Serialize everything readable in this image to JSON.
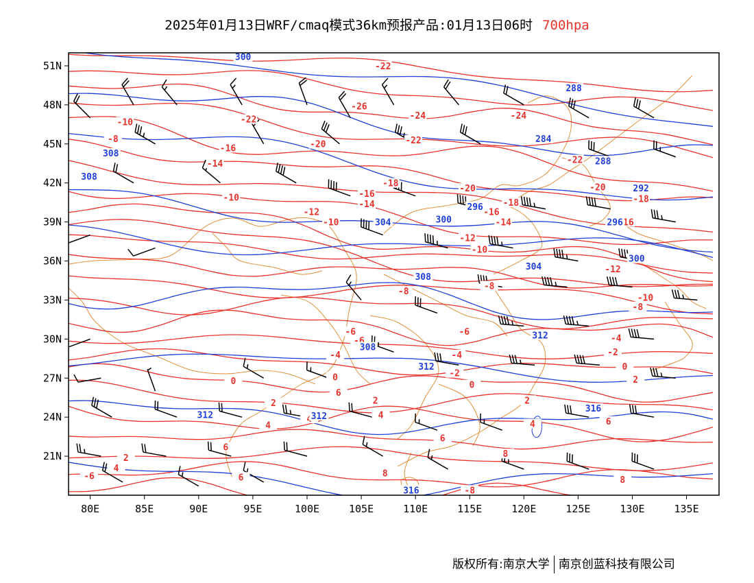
{
  "header": {
    "title": "2025年01月13日WRF/cmaq模式36km预报产品:01月13日06时",
    "level": "700hpa"
  },
  "footer": {
    "copyright": "版权所有:南京大学",
    "company": "南京创蓝科技有限公司"
  },
  "map": {
    "lon_range": [
      78,
      138
    ],
    "lat_range": [
      18,
      52
    ],
    "x_ticks": [
      {
        "lon": 80,
        "label": "80E"
      },
      {
        "lon": 85,
        "label": "85E"
      },
      {
        "lon": 90,
        "label": "90E"
      },
      {
        "lon": 95,
        "label": "95E"
      },
      {
        "lon": 100,
        "label": "100E"
      },
      {
        "lon": 105,
        "label": "105E"
      },
      {
        "lon": 110,
        "label": "110E"
      },
      {
        "lon": 115,
        "label": "115E"
      },
      {
        "lon": 120,
        "label": "120E"
      },
      {
        "lon": 125,
        "label": "125E"
      },
      {
        "lon": 130,
        "label": "130E"
      },
      {
        "lon": 135,
        "label": "135E"
      }
    ],
    "y_ticks": [
      {
        "lat": 21,
        "label": "21N"
      },
      {
        "lat": 24,
        "label": "24N"
      },
      {
        "lat": 27,
        "label": "27N"
      },
      {
        "lat": 30,
        "label": "30N"
      },
      {
        "lat": 33,
        "label": "33N"
      },
      {
        "lat": 36,
        "label": "36N"
      },
      {
        "lat": 39,
        "label": "39N"
      },
      {
        "lat": 42,
        "label": "42N"
      },
      {
        "lat": 45,
        "label": "45N"
      },
      {
        "lat": 48,
        "label": "48N"
      },
      {
        "lat": 51,
        "label": "51N"
      }
    ],
    "colors": {
      "temperature": "#e8322b",
      "geopotential": "#1f3fd8",
      "boundary": "#e0903a",
      "barb": "#000000"
    },
    "temperature_labels": [
      {
        "t": "-22",
        "lon": 107.0,
        "lat": 50.9
      },
      {
        "t": "-26",
        "lon": 104.8,
        "lat": 47.8
      },
      {
        "t": "-24",
        "lon": 110.2,
        "lat": 47.1
      },
      {
        "t": "-24",
        "lon": 119.5,
        "lat": 47.1
      },
      {
        "t": "-10",
        "lon": 83.2,
        "lat": 46.6
      },
      {
        "t": "-22",
        "lon": 94.6,
        "lat": 46.8
      },
      {
        "t": "-8",
        "lon": 82.1,
        "lat": 45.3
      },
      {
        "t": "-20",
        "lon": 101.0,
        "lat": 44.9
      },
      {
        "t": "-22",
        "lon": 109.8,
        "lat": 45.2
      },
      {
        "t": "-16",
        "lon": 92.7,
        "lat": 44.6
      },
      {
        "t": "-14",
        "lon": 91.5,
        "lat": 43.4
      },
      {
        "t": "-22",
        "lon": 124.7,
        "lat": 43.7
      },
      {
        "t": "-18",
        "lon": 107.7,
        "lat": 41.9
      },
      {
        "t": "-20",
        "lon": 114.8,
        "lat": 41.5
      },
      {
        "t": "-20",
        "lon": 126.8,
        "lat": 41.6
      },
      {
        "t": "-16",
        "lon": 105.5,
        "lat": 41.1
      },
      {
        "t": "-14",
        "lon": 105.5,
        "lat": 40.3
      },
      {
        "t": "-18",
        "lon": 118.8,
        "lat": 40.4
      },
      {
        "t": "-16",
        "lon": 117.0,
        "lat": 39.7
      },
      {
        "t": "-18",
        "lon": 130.8,
        "lat": 40.7
      },
      {
        "t": "-10",
        "lon": 93.0,
        "lat": 40.8
      },
      {
        "t": "-12",
        "lon": 100.4,
        "lat": 39.7
      },
      {
        "t": "-10",
        "lon": 102.2,
        "lat": 38.9
      },
      {
        "t": "-14",
        "lon": 118.1,
        "lat": 38.9
      },
      {
        "t": "-16",
        "lon": 129.4,
        "lat": 38.9
      },
      {
        "t": "-12",
        "lon": 114.8,
        "lat": 37.7
      },
      {
        "t": "-10",
        "lon": 115.9,
        "lat": 36.8
      },
      {
        "t": "-12",
        "lon": 128.2,
        "lat": 35.3
      },
      {
        "t": "-8",
        "lon": 108.9,
        "lat": 33.6
      },
      {
        "t": "-8",
        "lon": 116.8,
        "lat": 34.0
      },
      {
        "t": "-10",
        "lon": 131.2,
        "lat": 33.1
      },
      {
        "t": "-8",
        "lon": 130.5,
        "lat": 32.4
      },
      {
        "t": "-6",
        "lon": 104.0,
        "lat": 30.5
      },
      {
        "t": "-6",
        "lon": 114.5,
        "lat": 30.5
      },
      {
        "t": "-4",
        "lon": 128.5,
        "lat": 30.0
      },
      {
        "t": "-4",
        "lon": 102.6,
        "lat": 28.7
      },
      {
        "t": "-4",
        "lon": 113.8,
        "lat": 28.7
      },
      {
        "t": "-2",
        "lon": 128.2,
        "lat": 28.9
      },
      {
        "t": "0",
        "lon": 93.2,
        "lat": 26.7
      },
      {
        "t": "0",
        "lon": 102.6,
        "lat": 27.0
      },
      {
        "t": "-2",
        "lon": 113.6,
        "lat": 27.3
      },
      {
        "t": "0",
        "lon": 129.3,
        "lat": 27.8
      },
      {
        "t": "0",
        "lon": 115.2,
        "lat": 26.4
      },
      {
        "t": "2",
        "lon": 130.3,
        "lat": 26.8
      },
      {
        "t": "2",
        "lon": 106.3,
        "lat": 25.2
      },
      {
        "t": "2",
        "lon": 96.9,
        "lat": 25.0
      },
      {
        "t": "2",
        "lon": 120.3,
        "lat": 25.2
      },
      {
        "t": "4",
        "lon": 106.8,
        "lat": 24.1
      },
      {
        "t": "4",
        "lon": 100.2,
        "lat": 23.8
      },
      {
        "t": "4",
        "lon": 96.4,
        "lat": 23.3
      },
      {
        "t": "4",
        "lon": 120.8,
        "lat": 23.4
      },
      {
        "t": "6",
        "lon": 127.8,
        "lat": 23.6
      },
      {
        "t": "2",
        "lon": 83.3,
        "lat": 20.8
      },
      {
        "t": "4",
        "lon": 82.4,
        "lat": 20.0
      },
      {
        "t": "6",
        "lon": 92.5,
        "lat": 21.6
      },
      {
        "t": "6",
        "lon": 112.5,
        "lat": 22.3
      },
      {
        "t": "6",
        "lon": 93.9,
        "lat": 19.3
      },
      {
        "t": "8",
        "lon": 118.3,
        "lat": 21.1
      },
      {
        "t": "8",
        "lon": 107.2,
        "lat": 19.6
      },
      {
        "t": "-6",
        "lon": 79.9,
        "lat": 19.4
      },
      {
        "t": "-8",
        "lon": 115.0,
        "lat": 18.3
      },
      {
        "t": "8",
        "lon": 129.1,
        "lat": 19.1
      },
      {
        "t": "6",
        "lon": 102.9,
        "lat": 25.8
      },
      {
        "t": "-6",
        "lon": 104.8,
        "lat": 29.8
      }
    ],
    "height_labels": [
      {
        "h": "300",
        "lon": 94.1,
        "lat": 51.6
      },
      {
        "h": "288",
        "lon": 124.6,
        "lat": 49.2
      },
      {
        "h": "284",
        "lon": 121.8,
        "lat": 45.3
      },
      {
        "h": "288",
        "lon": 127.3,
        "lat": 43.6
      },
      {
        "h": "292",
        "lon": 130.8,
        "lat": 41.5
      },
      {
        "h": "296",
        "lon": 115.5,
        "lat": 40.1
      },
      {
        "h": "296",
        "lon": 128.4,
        "lat": 38.9
      },
      {
        "h": "300",
        "lon": 112.6,
        "lat": 39.1
      },
      {
        "h": "304",
        "lon": 107.0,
        "lat": 38.9
      },
      {
        "h": "304",
        "lon": 120.9,
        "lat": 35.5
      },
      {
        "h": "300",
        "lon": 130.4,
        "lat": 36.1
      },
      {
        "h": "308",
        "lon": 81.9,
        "lat": 44.2
      },
      {
        "h": "308",
        "lon": 79.9,
        "lat": 42.4
      },
      {
        "h": "308",
        "lon": 110.7,
        "lat": 34.7
      },
      {
        "h": "308",
        "lon": 105.6,
        "lat": 29.3
      },
      {
        "h": "312",
        "lon": 121.5,
        "lat": 30.2
      },
      {
        "h": "312",
        "lon": 111.0,
        "lat": 27.8
      },
      {
        "h": "312",
        "lon": 90.6,
        "lat": 24.1
      },
      {
        "h": "312",
        "lon": 101.1,
        "lat": 24.0
      },
      {
        "h": "316",
        "lon": 126.4,
        "lat": 24.6
      },
      {
        "h": "316",
        "lon": 109.6,
        "lat": 18.3
      }
    ],
    "wind_barbs": [
      {
        "lon": 80,
        "lat": 47,
        "dir": 315,
        "kt": 20
      },
      {
        "lon": 84,
        "lat": 48,
        "dir": 330,
        "kt": 20
      },
      {
        "lon": 88,
        "lat": 48,
        "dir": 320,
        "kt": 15
      },
      {
        "lon": 94,
        "lat": 48,
        "dir": 330,
        "kt": 15
      },
      {
        "lon": 100,
        "lat": 48,
        "dir": 340,
        "kt": 20
      },
      {
        "lon": 104,
        "lat": 47,
        "dir": 330,
        "kt": 20
      },
      {
        "lon": 108,
        "lat": 48,
        "dir": 330,
        "kt": 15
      },
      {
        "lon": 114,
        "lat": 48,
        "dir": 320,
        "kt": 20
      },
      {
        "lon": 120,
        "lat": 48,
        "dir": 300,
        "kt": 20
      },
      {
        "lon": 126,
        "lat": 47,
        "dir": 300,
        "kt": 30
      },
      {
        "lon": 132,
        "lat": 47,
        "dir": 300,
        "kt": 30
      },
      {
        "lon": 86,
        "lat": 45,
        "dir": 300,
        "kt": 35
      },
      {
        "lon": 96,
        "lat": 45,
        "dir": 330,
        "kt": 20
      },
      {
        "lon": 103,
        "lat": 45,
        "dir": 310,
        "kt": 30
      },
      {
        "lon": 110,
        "lat": 45,
        "dir": 300,
        "kt": 35
      },
      {
        "lon": 116,
        "lat": 45,
        "dir": 300,
        "kt": 30
      },
      {
        "lon": 128,
        "lat": 44,
        "dir": 290,
        "kt": 30
      },
      {
        "lon": 134,
        "lat": 44,
        "dir": 290,
        "kt": 25
      },
      {
        "lon": 84,
        "lat": 42,
        "dir": 300,
        "kt": 20
      },
      {
        "lon": 92,
        "lat": 42,
        "dir": 310,
        "kt": 15
      },
      {
        "lon": 99,
        "lat": 42,
        "dir": 300,
        "kt": 40
      },
      {
        "lon": 104,
        "lat": 41,
        "dir": 290,
        "kt": 40
      },
      {
        "lon": 110,
        "lat": 41,
        "dir": 290,
        "kt": 40
      },
      {
        "lon": 116,
        "lat": 40,
        "dir": 285,
        "kt": 45
      },
      {
        "lon": 122,
        "lat": 40,
        "dir": 280,
        "kt": 45
      },
      {
        "lon": 128,
        "lat": 40,
        "dir": 280,
        "kt": 40
      },
      {
        "lon": 134,
        "lat": 39,
        "dir": 280,
        "kt": 35
      },
      {
        "lon": 80,
        "lat": 38,
        "dir": 250,
        "kt": 10
      },
      {
        "lon": 86,
        "lat": 37,
        "dir": 250,
        "kt": 10
      },
      {
        "lon": 107,
        "lat": 38,
        "dir": 290,
        "kt": 40
      },
      {
        "lon": 113,
        "lat": 37,
        "dir": 285,
        "kt": 45
      },
      {
        "lon": 119,
        "lat": 37,
        "dir": 280,
        "kt": 45
      },
      {
        "lon": 125,
        "lat": 36,
        "dir": 280,
        "kt": 45
      },
      {
        "lon": 131,
        "lat": 36,
        "dir": 280,
        "kt": 40
      },
      {
        "lon": 118,
        "lat": 34,
        "dir": 280,
        "kt": 45
      },
      {
        "lon": 124,
        "lat": 34,
        "dir": 275,
        "kt": 45
      },
      {
        "lon": 130,
        "lat": 34,
        "dir": 275,
        "kt": 40
      },
      {
        "lon": 136,
        "lat": 33,
        "dir": 275,
        "kt": 35
      },
      {
        "lon": 105,
        "lat": 33,
        "dir": 320,
        "kt": 15
      },
      {
        "lon": 112,
        "lat": 32,
        "dir": 290,
        "kt": 30
      },
      {
        "lon": 120,
        "lat": 31,
        "dir": 275,
        "kt": 45
      },
      {
        "lon": 126,
        "lat": 31,
        "dir": 275,
        "kt": 45
      },
      {
        "lon": 132,
        "lat": 30,
        "dir": 275,
        "kt": 40
      },
      {
        "lon": 80,
        "lat": 30,
        "dir": 250,
        "kt": 10
      },
      {
        "lon": 108,
        "lat": 29,
        "dir": 290,
        "kt": 25
      },
      {
        "lon": 114,
        "lat": 28,
        "dir": 280,
        "kt": 30
      },
      {
        "lon": 121,
        "lat": 28,
        "dir": 275,
        "kt": 35
      },
      {
        "lon": 127,
        "lat": 28,
        "dir": 275,
        "kt": 40
      },
      {
        "lon": 134,
        "lat": 27,
        "dir": 275,
        "kt": 35
      },
      {
        "lon": 81,
        "lat": 27,
        "dir": 260,
        "kt": 10
      },
      {
        "lon": 86,
        "lat": 26,
        "dir": 340,
        "kt": 5
      },
      {
        "lon": 96,
        "lat": 27,
        "dir": 300,
        "kt": 15
      },
      {
        "lon": 102,
        "lat": 27,
        "dir": 290,
        "kt": 15
      },
      {
        "lon": 82,
        "lat": 24,
        "dir": 300,
        "kt": 30
      },
      {
        "lon": 88,
        "lat": 24,
        "dir": 290,
        "kt": 20
      },
      {
        "lon": 94,
        "lat": 24,
        "dir": 285,
        "kt": 20
      },
      {
        "lon": 100,
        "lat": 24,
        "dir": 280,
        "kt": 25
      },
      {
        "lon": 106,
        "lat": 24,
        "dir": 285,
        "kt": 20
      },
      {
        "lon": 112,
        "lat": 23,
        "dir": 290,
        "kt": 15
      },
      {
        "lon": 118,
        "lat": 23,
        "dir": 290,
        "kt": 15
      },
      {
        "lon": 126,
        "lat": 24,
        "dir": 280,
        "kt": 30
      },
      {
        "lon": 132,
        "lat": 24,
        "dir": 280,
        "kt": 30
      },
      {
        "lon": 81,
        "lat": 21,
        "dir": 280,
        "kt": 25
      },
      {
        "lon": 87,
        "lat": 21,
        "dir": 280,
        "kt": 20
      },
      {
        "lon": 93,
        "lat": 21,
        "dir": 285,
        "kt": 20
      },
      {
        "lon": 100,
        "lat": 21,
        "dir": 285,
        "kt": 20
      },
      {
        "lon": 107,
        "lat": 21,
        "dir": 300,
        "kt": 15
      },
      {
        "lon": 113,
        "lat": 20,
        "dir": 300,
        "kt": 15
      },
      {
        "lon": 120,
        "lat": 20,
        "dir": 290,
        "kt": 25
      },
      {
        "lon": 126,
        "lat": 20,
        "dir": 290,
        "kt": 30
      },
      {
        "lon": 132,
        "lat": 20,
        "dir": 290,
        "kt": 30
      },
      {
        "lon": 83,
        "lat": 19,
        "dir": 300,
        "kt": 20
      },
      {
        "lon": 90,
        "lat": 18.7,
        "dir": 300,
        "kt": 15
      },
      {
        "lon": 96,
        "lat": 19,
        "dir": 300,
        "kt": 15
      }
    ]
  }
}
